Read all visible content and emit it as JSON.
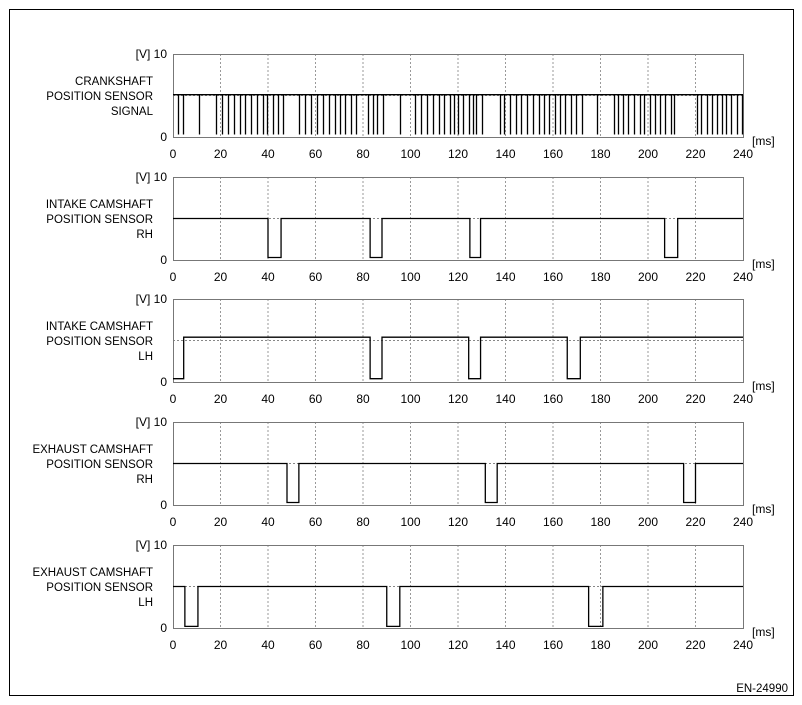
{
  "figure_id": "EN-24990",
  "chart_data": [
    {
      "type": "line",
      "label": [
        "CRANKSHAFT",
        "POSITION SENSOR",
        "SIGNAL"
      ],
      "y_unit": "[V]",
      "x_unit": "[ms]",
      "ylim": [
        0,
        10
      ],
      "xlim": [
        0,
        240
      ],
      "y_ticks": [
        "0",
        "10"
      ],
      "x_ticks": [
        "0",
        "20",
        "40",
        "60",
        "80",
        "100",
        "120",
        "140",
        "160",
        "180",
        "200",
        "220",
        "240"
      ],
      "grid": true,
      "reference_level_v": 5,
      "high_v": 5.1,
      "low_v": 0.3,
      "pulse_times_ms": [
        2,
        4,
        11,
        18,
        20.5,
        23,
        25.5,
        28,
        30.5,
        33,
        35.5,
        38,
        39.5,
        42,
        44,
        46.5,
        53,
        55.5,
        58,
        60.5,
        63,
        65.5,
        68,
        70.5,
        72.5,
        75,
        77,
        82,
        84,
        86,
        88.5,
        95.5,
        102,
        104.5,
        107,
        109.5,
        112,
        114,
        116.5,
        118.5,
        120,
        122,
        124.5,
        126.5,
        127.5,
        130,
        137.5,
        139.5,
        142,
        144.5,
        146.5,
        149,
        151.5,
        154,
        156,
        158.5,
        161,
        163,
        165,
        167.5,
        169.5,
        172,
        178.5,
        185.5,
        187.5,
        189.5,
        191.5,
        194,
        196.5,
        198.5,
        201,
        203,
        205,
        207,
        209.5,
        211,
        220.5,
        222.5,
        225,
        227,
        229,
        231,
        233,
        235,
        237.5,
        239.5
      ]
    },
    {
      "type": "line",
      "label": [
        "INTAKE CAMSHAFT",
        "POSITION SENSOR",
        "RH"
      ],
      "y_unit": "[V]",
      "x_unit": "[ms]",
      "ylim": [
        0,
        10
      ],
      "xlim": [
        0,
        240
      ],
      "y_ticks": [
        "0",
        "10"
      ],
      "x_ticks": [
        "0",
        "20",
        "40",
        "60",
        "80",
        "100",
        "120",
        "140",
        "160",
        "180",
        "200",
        "220",
        "240"
      ],
      "grid": true,
      "reference_level_v": 5,
      "high_v": 5,
      "low_v": 0.3,
      "initial_state": "high",
      "low_intervals_ms": [
        [
          40,
          45.5
        ],
        [
          83,
          88
        ],
        [
          125,
          129.5
        ],
        [
          207,
          212.5
        ]
      ]
    },
    {
      "type": "line",
      "label": [
        "INTAKE CAMSHAFT",
        "POSITION SENSOR",
        "LH"
      ],
      "y_unit": "[V]",
      "x_unit": "[ms]",
      "ylim": [
        0,
        10
      ],
      "xlim": [
        0,
        240
      ],
      "y_ticks": [
        "0",
        "10"
      ],
      "x_ticks": [
        "0",
        "20",
        "40",
        "60",
        "80",
        "100",
        "120",
        "140",
        "160",
        "180",
        "200",
        "220",
        "240"
      ],
      "grid": true,
      "reference_level_v": 5,
      "high_v": 5.4,
      "low_v": 0.4,
      "low_intervals_ms": [
        [
          0,
          4.5
        ],
        [
          83,
          88
        ],
        [
          124.5,
          129.5
        ],
        [
          166,
          171.5
        ]
      ]
    },
    {
      "type": "line",
      "label": [
        "EXHAUST CAMSHAFT",
        "POSITION SENSOR",
        "RH"
      ],
      "y_unit": "[V]",
      "x_unit": "[ms]",
      "ylim": [
        0,
        10
      ],
      "xlim": [
        0,
        240
      ],
      "y_ticks": [
        "0",
        "10"
      ],
      "x_ticks": [
        "0",
        "20",
        "40",
        "60",
        "80",
        "100",
        "120",
        "140",
        "160",
        "180",
        "200",
        "220",
        "240"
      ],
      "grid": true,
      "reference_level_v": 5,
      "high_v": 5,
      "low_v": 0.3,
      "low_intervals_ms": [
        [
          48,
          53
        ],
        [
          131.5,
          136.5
        ],
        [
          215,
          220
        ]
      ]
    },
    {
      "type": "line",
      "label": [
        "EXHAUST CAMSHAFT",
        "POSITION SENSOR",
        "LH"
      ],
      "y_unit": "[V]",
      "x_unit": "[ms]",
      "ylim": [
        0,
        10
      ],
      "xlim": [
        0,
        240
      ],
      "y_ticks": [
        "0",
        "10"
      ],
      "x_ticks": [
        "0",
        "20",
        "40",
        "60",
        "80",
        "100",
        "120",
        "140",
        "160",
        "180",
        "200",
        "220",
        "240"
      ],
      "grid": true,
      "reference_level_v": 5,
      "high_v": 5,
      "low_v": 0.2,
      "low_intervals_ms": [
        [
          5,
          10.5
        ],
        [
          90,
          95.5
        ],
        [
          175,
          181
        ]
      ]
    }
  ]
}
